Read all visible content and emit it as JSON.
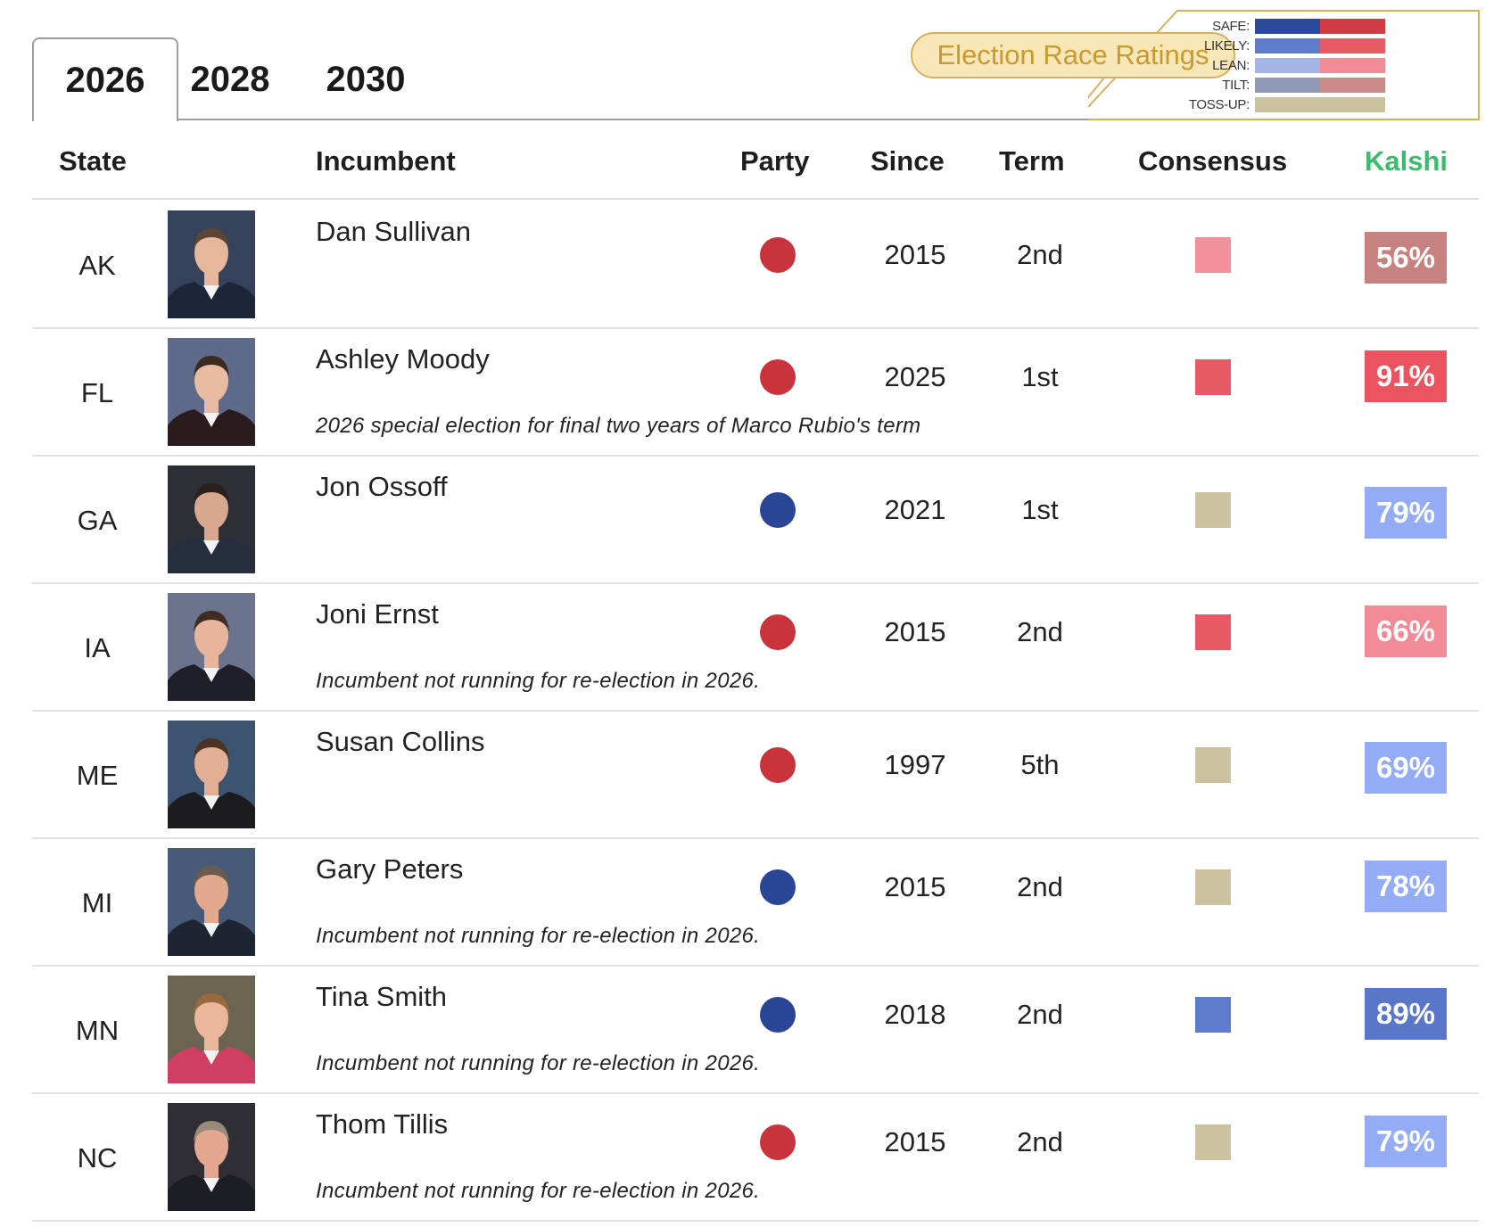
{
  "tabs": [
    {
      "label": "2026",
      "active": true
    },
    {
      "label": "2028",
      "active": false
    },
    {
      "label": "2030",
      "active": false
    }
  ],
  "legend": {
    "title": "Election Race Ratings",
    "rows": [
      {
        "label": "SAFE:",
        "dem_color": "#2c4a9c",
        "rep_color": "#d23b43"
      },
      {
        "label": "LIKELY:",
        "dem_color": "#5f7ccc",
        "rep_color": "#e85a66"
      },
      {
        "label": "LEAN:",
        "dem_color": "#a3b4e6",
        "rep_color": "#f08a95"
      },
      {
        "label": "TILT:",
        "dem_color": "#8f99b8",
        "rep_color": "#cc8a86"
      },
      {
        "label": "TOSS-UP:",
        "dem_color": "#cbc29f",
        "rep_color": "#cbc29f"
      }
    ]
  },
  "columns": {
    "state": "State",
    "incumbent": "Incumbent",
    "party": "Party",
    "since": "Since",
    "term": "Term",
    "consensus": "Consensus",
    "kalshi": "Kalshi"
  },
  "colors": {
    "republican": "#c9333b",
    "democrat": "#2a4496",
    "kalshi_header": "#3dbb6c"
  },
  "rows": [
    {
      "state": "AK",
      "name": "Dan Sullivan",
      "note": "",
      "party": "republican",
      "since": "2015",
      "term": "2nd",
      "consensus_color": "#f2909c",
      "kalshi": "56%",
      "kalshi_color": "#c7827f",
      "photo_bg": "#34425c",
      "skin": "#e7b79c",
      "hair": "#5b4535",
      "suit": "#1d2538"
    },
    {
      "state": "FL",
      "name": "Ashley Moody",
      "note": "2026 special election for final two years of Marco Rubio's term",
      "party": "republican",
      "since": "2025",
      "term": "1st",
      "consensus_color": "#e85a66",
      "kalshi": "91%",
      "kalshi_color": "#ea5461",
      "photo_bg": "#5d6a8a",
      "skin": "#e9bba3",
      "hair": "#3b2a20",
      "suit": "#2a1c1e"
    },
    {
      "state": "GA",
      "name": "Jon Ossoff",
      "note": "",
      "party": "democrat",
      "since": "2021",
      "term": "1st",
      "consensus_color": "#cbc29f",
      "kalshi": "79%",
      "kalshi_color": "#93acf5",
      "photo_bg": "#2c2f36",
      "skin": "#d7a790",
      "hair": "#2a211c",
      "suit": "#262d3f"
    },
    {
      "state": "IA",
      "name": "Joni Ernst",
      "note": "Incumbent not running for re-election in 2026.",
      "party": "republican",
      "since": "2015",
      "term": "2nd",
      "consensus_color": "#e85a66",
      "kalshi": "66%",
      "kalshi_color": "#f08a95",
      "photo_bg": "#6b748c",
      "skin": "#e6b59c",
      "hair": "#3f2d22",
      "suit": "#1f1f29"
    },
    {
      "state": "ME",
      "name": "Susan Collins",
      "note": "",
      "party": "republican",
      "since": "1997",
      "term": "5th",
      "consensus_color": "#cbc29f",
      "kalshi": "69%",
      "kalshi_color": "#93acf5",
      "photo_bg": "#3d5470",
      "skin": "#e2ae94",
      "hair": "#4a3424",
      "suit": "#1b1b20"
    },
    {
      "state": "MI",
      "name": "Gary Peters",
      "note": "Incumbent not running for re-election in 2026.",
      "party": "democrat",
      "since": "2015",
      "term": "2nd",
      "consensus_color": "#cbc29f",
      "kalshi": "78%",
      "kalshi_color": "#93acf5",
      "photo_bg": "#475a78",
      "skin": "#e3a98c",
      "hair": "#6b5a4e",
      "suit": "#1f2433"
    },
    {
      "state": "MN",
      "name": "Tina Smith",
      "note": "Incumbent not running for re-election in 2026.",
      "party": "democrat",
      "since": "2018",
      "term": "2nd",
      "consensus_color": "#5f7ccc",
      "kalshi": "89%",
      "kalshi_color": "#5a76c9",
      "photo_bg": "#6b6450",
      "skin": "#eab79d",
      "hair": "#9a6a3e",
      "suit": "#d03e63"
    },
    {
      "state": "NC",
      "name": "Thom Tillis",
      "note": "Incumbent not running for re-election in 2026.",
      "party": "republican",
      "since": "2015",
      "term": "2nd",
      "consensus_color": "#cbc29f",
      "kalshi": "79%",
      "kalshi_color": "#93acf5",
      "photo_bg": "#2e2e34",
      "skin": "#e3a88f",
      "hair": "#9a8a7a",
      "suit": "#1d1d25"
    }
  ]
}
